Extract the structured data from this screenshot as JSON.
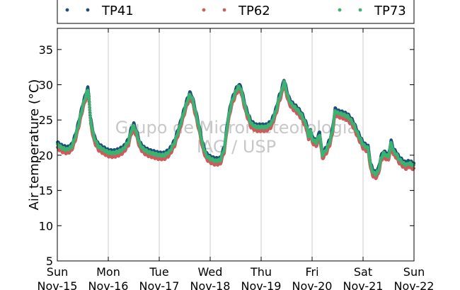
{
  "chart_data": {
    "type": "scatter",
    "title": "",
    "xlabel": "",
    "ylabel": "Air temperature (°C)",
    "ylim": [
      5,
      38
    ],
    "yticks": [
      5,
      10,
      15,
      20,
      25,
      30,
      35
    ],
    "xticks": [
      {
        "day": "Sun",
        "date": "Nov-15"
      },
      {
        "day": "Mon",
        "date": "Nov-16"
      },
      {
        "day": "Tue",
        "date": "Nov-17"
      },
      {
        "day": "Wed",
        "date": "Nov-18"
      },
      {
        "day": "Thu",
        "date": "Nov-19"
      },
      {
        "day": "Fri",
        "date": "Nov-20"
      },
      {
        "day": "Sat",
        "date": "Nov-21"
      },
      {
        "day": "Sun",
        "date": "Nov-22"
      }
    ],
    "grid": "vertical",
    "legend_position": "top",
    "watermark": [
      "Grupo de Micrometeorologia",
      "IAG / USP"
    ],
    "series": [
      {
        "name": "TP41",
        "color": "#1f4e79",
        "offset": 0.3
      },
      {
        "name": "TP62",
        "color": "#cd5c5c",
        "offset": -0.5
      },
      {
        "name": "TP73",
        "color": "#3cb371",
        "offset": 0.0
      }
    ],
    "x_days": [
      0,
      0.1,
      0.2,
      0.28,
      0.35,
      0.42,
      0.5,
      0.56,
      0.6,
      0.625,
      0.65,
      0.72,
      0.8,
      0.9,
      1.0,
      1.1,
      1.2,
      1.3,
      1.4,
      1.45,
      1.5,
      1.56,
      1.62,
      1.7,
      1.8,
      1.9,
      2.0,
      2.1,
      2.2,
      2.3,
      2.4,
      2.5,
      2.55,
      2.6,
      2.65,
      2.7,
      2.78,
      2.85,
      2.92,
      3.0,
      3.1,
      3.2,
      3.28,
      3.35,
      3.42,
      3.5,
      3.55,
      3.6,
      3.65,
      3.7,
      3.8,
      3.9,
      4.0,
      4.1,
      4.2,
      4.3,
      4.35,
      4.4,
      4.45,
      4.5,
      4.55,
      4.6,
      4.66,
      4.72,
      4.8,
      4.9,
      4.93,
      4.97,
      5.0,
      5.08,
      5.15,
      5.2,
      5.28,
      5.35,
      5.4,
      5.45,
      5.5,
      5.6,
      5.7,
      5.8,
      5.9,
      6.0,
      6.05,
      6.1,
      6.15,
      6.2,
      6.25,
      6.3,
      6.35,
      6.4,
      6.45,
      6.5,
      6.55,
      6.6,
      6.65,
      6.7,
      6.8,
      6.85,
      6.9,
      7.0
    ],
    "values": [
      21.5,
      21.0,
      20.8,
      21.2,
      22.5,
      24.5,
      27.0,
      28.5,
      29.3,
      28.0,
      25.0,
      22.5,
      21.3,
      20.8,
      20.4,
      20.3,
      20.5,
      20.9,
      22.0,
      23.5,
      24.2,
      23.0,
      21.5,
      20.8,
      20.4,
      20.2,
      20.0,
      20.0,
      20.5,
      21.8,
      24.0,
      26.5,
      27.7,
      28.6,
      28.0,
      26.5,
      24.0,
      21.5,
      20.0,
      19.5,
      19.2,
      19.3,
      21.0,
      25.0,
      27.5,
      29.0,
      29.7,
      29.5,
      28.0,
      26.5,
      24.5,
      24.0,
      24.0,
      24.0,
      24.5,
      26.5,
      28.0,
      29.0,
      30.5,
      29.0,
      27.8,
      27.2,
      26.8,
      26.4,
      25.6,
      24.0,
      22.5,
      23.5,
      22.3,
      21.8,
      23.0,
      20.0,
      20.8,
      22.0,
      23.5,
      26.3,
      26.0,
      25.8,
      25.5,
      24.6,
      23.0,
      21.5,
      21.2,
      21.0,
      18.5,
      17.5,
      17.3,
      17.8,
      19.5,
      20.3,
      20.0,
      19.8,
      21.8,
      20.5,
      20.2,
      19.5,
      18.8,
      18.6,
      18.9,
      18.5
    ]
  }
}
